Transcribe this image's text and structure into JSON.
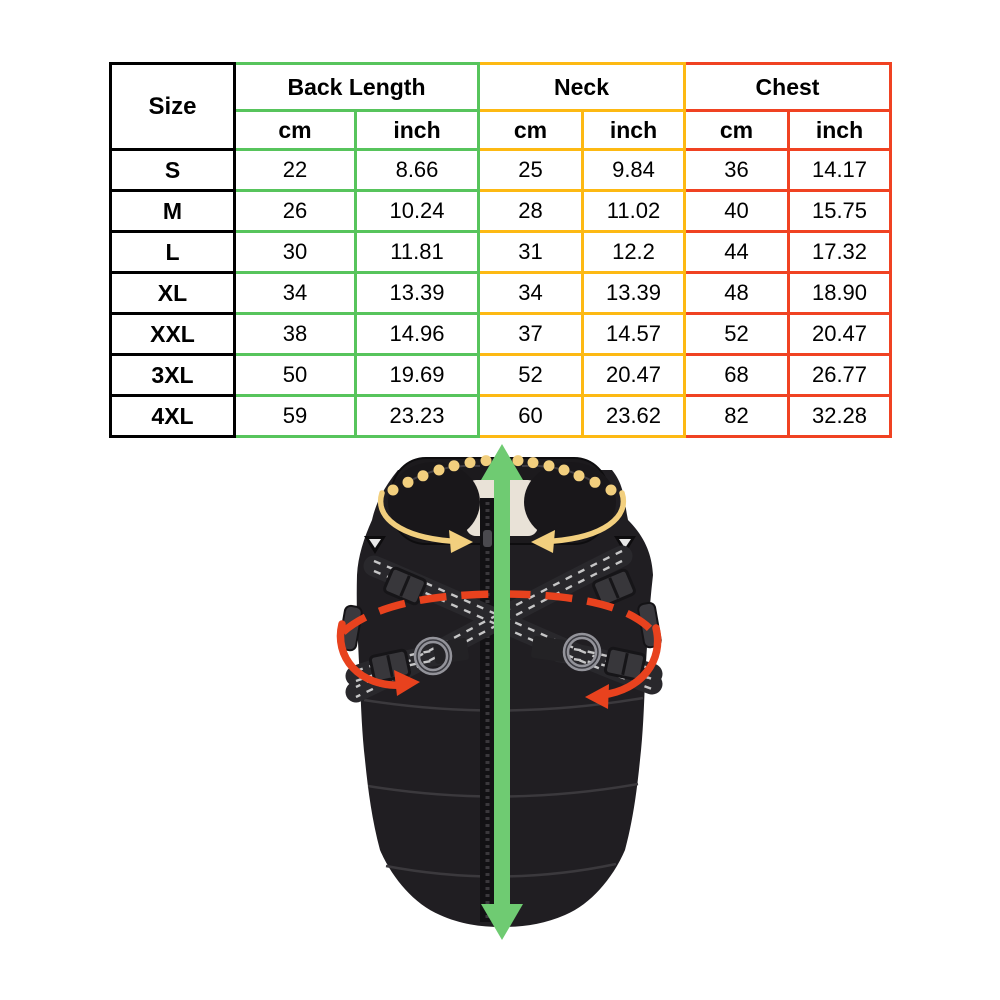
{
  "table": {
    "size_header": "Size",
    "groups": [
      {
        "label": "Back Length"
      },
      {
        "label": "Neck"
      },
      {
        "label": "Chest"
      }
    ],
    "unit_headers": [
      "cm",
      "inch"
    ],
    "rows": [
      {
        "size": "S",
        "values": [
          "22",
          "8.66",
          "25",
          "9.84",
          "36",
          "14.17"
        ]
      },
      {
        "size": "M",
        "values": [
          "26",
          "10.24",
          "28",
          "11.02",
          "40",
          "15.75"
        ]
      },
      {
        "size": "L",
        "values": [
          "30",
          "11.81",
          "31",
          "12.2",
          "44",
          "17.32"
        ]
      },
      {
        "size": "XL",
        "values": [
          "34",
          "13.39",
          "34",
          "13.39",
          "48",
          "18.90"
        ]
      },
      {
        "size": "XXL",
        "values": [
          "38",
          "14.96",
          "37",
          "14.57",
          "52",
          "20.47"
        ]
      },
      {
        "size": "3XL",
        "values": [
          "50",
          "19.69",
          "52",
          "20.47",
          "68",
          "26.77"
        ]
      },
      {
        "size": "4XL",
        "values": [
          "59",
          "23.23",
          "60",
          "23.62",
          "82",
          "32.28"
        ]
      }
    ]
  },
  "diagram": {
    "product": "dog vest with harness",
    "annotations": [
      {
        "name": "back-length-arrow",
        "shape": "vertical-double-headed-arrow",
        "color_key": "back_length_arrow"
      },
      {
        "name": "neck-measure-arc",
        "shape": "dotted-arc-with-curved-arrows",
        "color_key": "neck_arrow"
      },
      {
        "name": "chest-measure-arc",
        "shape": "dashed-ellipse-with-curved-arrows",
        "color_key": "chest_arrow"
      }
    ]
  },
  "colors": {
    "size_border": "#000000",
    "back_length_border": "#57c45c",
    "neck_border": "#fdb913",
    "chest_border": "#f04222",
    "back_length_arrow": "#6fcb72",
    "neck_arrow": "#f2cf7e",
    "chest_arrow": "#e8421e",
    "vest_black": "#201e22",
    "collar_black": "#1c1a1d",
    "fleece": "#e9e2d7",
    "strap": "#29282c",
    "metal_ring": "#93939a"
  }
}
